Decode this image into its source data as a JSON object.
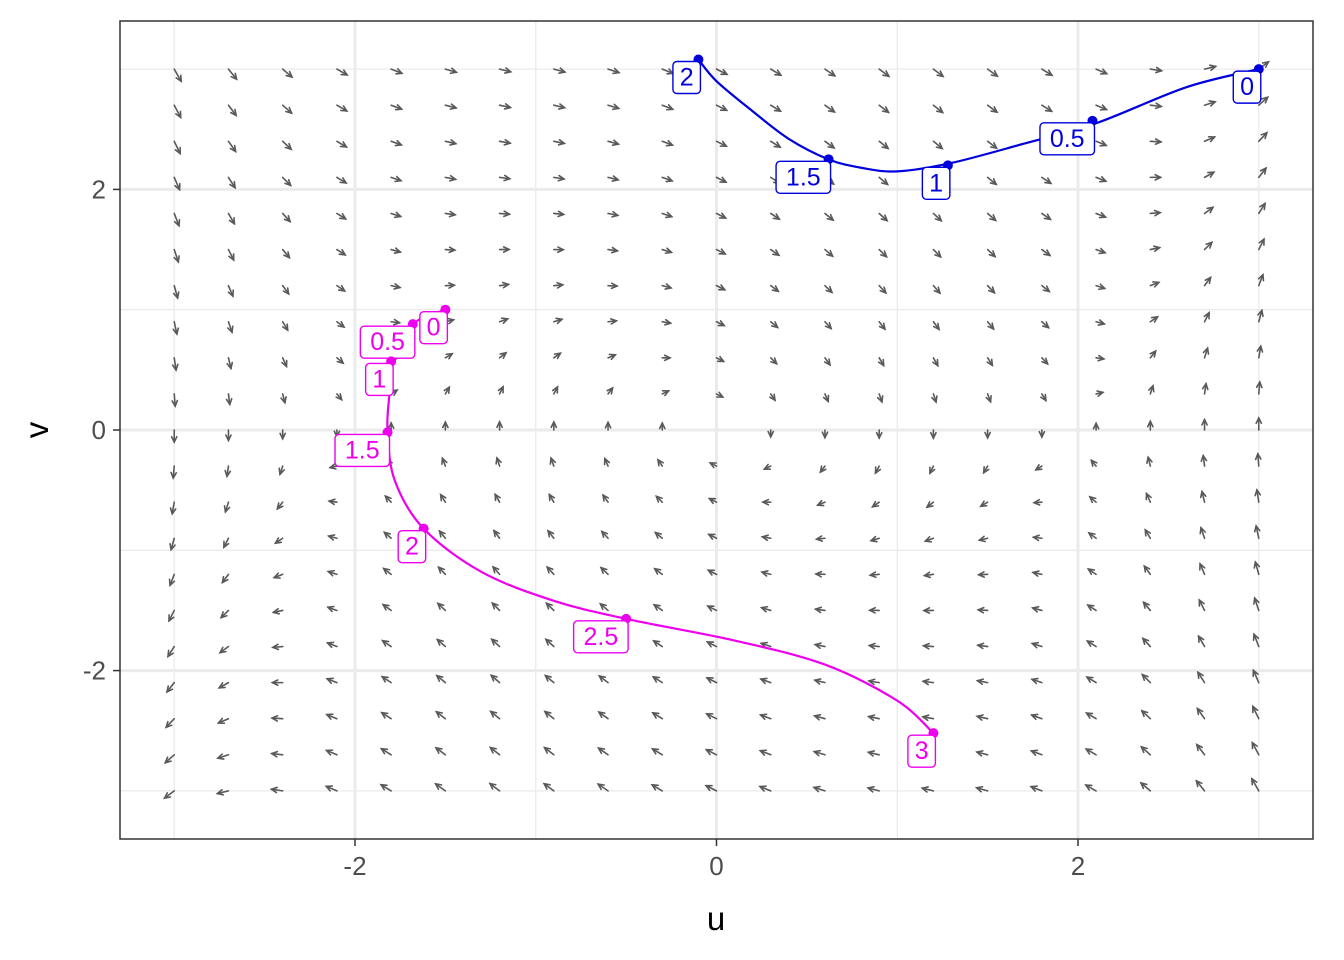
{
  "chart_data": {
    "type": "scatter",
    "subtype": "phase-portrait",
    "title": "",
    "xlabel": "u",
    "ylabel": "v",
    "xlim": [
      -3.3,
      3.3
    ],
    "ylim": [
      -3.4,
      3.4
    ],
    "x_ticks": [
      -2,
      0,
      2
    ],
    "y_ticks": [
      -2,
      0,
      2
    ],
    "x_tick_labels": [
      "-2",
      "0",
      "2"
    ],
    "y_tick_labels": [
      "-2",
      "0",
      "2"
    ],
    "grid": true,
    "legend": "none",
    "vector_field": {
      "x_range": [
        -3,
        3
      ],
      "y_range": [
        -3,
        3
      ],
      "nx": 21,
      "ny": 21,
      "color": "#595959"
    },
    "trajectories": [
      {
        "color": "#0000DD",
        "curve": [
          [
            3.0,
            3.0
          ],
          [
            2.6,
            2.85
          ],
          [
            2.1,
            2.55
          ],
          [
            1.7,
            2.38
          ],
          [
            1.3,
            2.22
          ],
          [
            1.0,
            2.15
          ],
          [
            0.8,
            2.18
          ],
          [
            0.62,
            2.25
          ],
          [
            0.4,
            2.42
          ],
          [
            0.2,
            2.65
          ],
          [
            0.0,
            2.9
          ],
          [
            -0.1,
            3.08
          ]
        ],
        "points": [
          {
            "x": 3.0,
            "y": 3.0,
            "label": "0"
          },
          {
            "x": 2.08,
            "y": 2.57,
            "label": "0.5"
          },
          {
            "x": 1.28,
            "y": 2.2,
            "label": "1"
          },
          {
            "x": 0.62,
            "y": 2.25,
            "label": "1.5"
          },
          {
            "x": -0.1,
            "y": 3.08,
            "label": "2"
          }
        ]
      },
      {
        "color": "#EE00EE",
        "curve": [
          [
            -1.5,
            1.0
          ],
          [
            -1.68,
            0.88
          ],
          [
            -1.8,
            0.58
          ],
          [
            -1.81,
            0.3
          ],
          [
            -1.82,
            0.0
          ],
          [
            -1.78,
            -0.42
          ],
          [
            -1.62,
            -0.82
          ],
          [
            -1.3,
            -1.18
          ],
          [
            -0.9,
            -1.42
          ],
          [
            -0.5,
            -1.57
          ],
          [
            0.1,
            -1.75
          ],
          [
            0.6,
            -1.95
          ],
          [
            1.0,
            -2.25
          ],
          [
            1.2,
            -2.52
          ]
        ],
        "points": [
          {
            "x": -1.5,
            "y": 1.0,
            "label": "0"
          },
          {
            "x": -1.68,
            "y": 0.88,
            "label": "0.5"
          },
          {
            "x": -1.8,
            "y": 0.57,
            "label": "1"
          },
          {
            "x": -1.82,
            "y": -0.02,
            "label": "1.5"
          },
          {
            "x": -1.62,
            "y": -0.82,
            "label": "2"
          },
          {
            "x": -0.5,
            "y": -1.57,
            "label": "2.5"
          },
          {
            "x": 1.2,
            "y": -2.52,
            "label": "3"
          }
        ]
      }
    ]
  }
}
